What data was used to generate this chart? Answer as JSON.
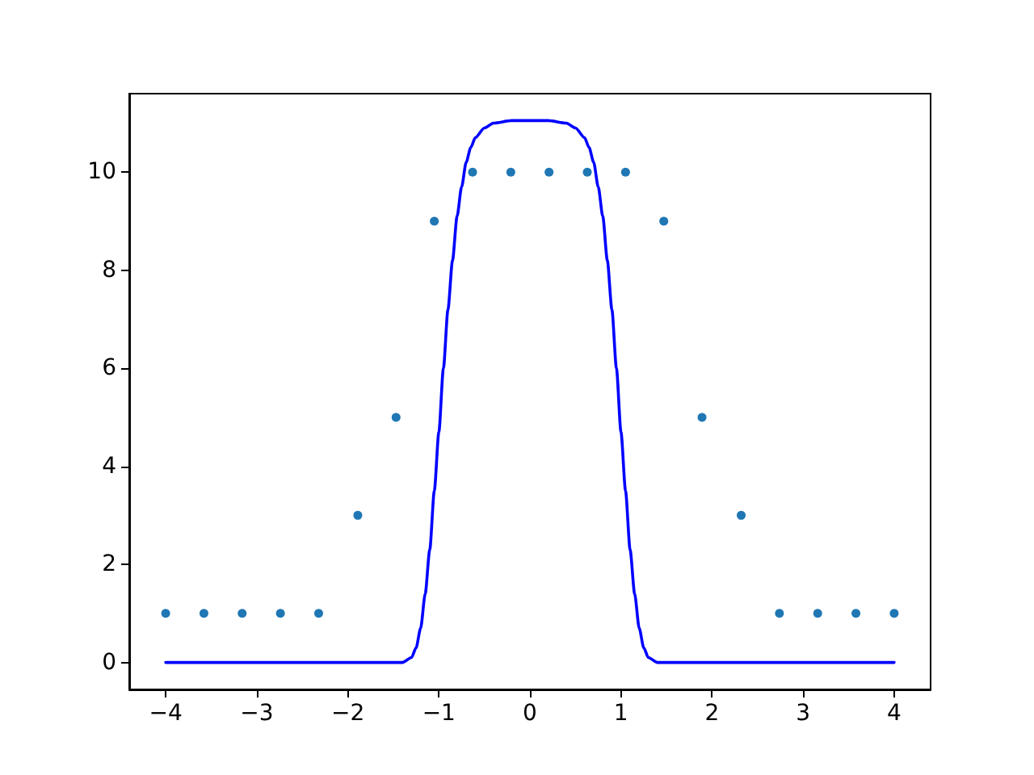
{
  "chart_data": {
    "type": "scatter",
    "xlim": [
      -4.4,
      4.4
    ],
    "ylim": [
      -0.55,
      11.6
    ],
    "xticks": [
      {
        "value": -4,
        "label": "−4"
      },
      {
        "value": -3,
        "label": "−3"
      },
      {
        "value": -2,
        "label": "−2"
      },
      {
        "value": -1,
        "label": "−1"
      },
      0,
      1,
      2,
      3,
      4
    ],
    "yticks": [
      0,
      2,
      4,
      6,
      8,
      10
    ],
    "marker": "circle",
    "series": [
      {
        "color": "#1f77b4",
        "x": [
          -4,
          -3.58,
          -3.16,
          -2.74,
          -2.32,
          -1.89,
          -1.47,
          -1.05,
          -0.63,
          -0.21,
          0.21,
          0.63,
          1.05,
          1.47,
          1.89,
          2.32,
          2.74,
          3.16,
          3.58,
          4
        ],
        "values": [
          1,
          1,
          1,
          1,
          1,
          3,
          5,
          9,
          10,
          10,
          10,
          10,
          10,
          9,
          5,
          3,
          1,
          1,
          1,
          1
        ]
      },
      {
        "type": "line",
        "color": "#0000ff",
        "marker": "none",
        "x": [
          -4,
          -2,
          -1.5,
          -1.4,
          -1.3,
          -1.25,
          -1.2,
          -1.15,
          -1.1,
          -1.05,
          -1,
          -0.95,
          -0.9,
          -0.85,
          -0.8,
          -0.75,
          -0.7,
          -0.65,
          -0.6,
          -0.5,
          -0.4,
          -0.2,
          0,
          0.2,
          0.4,
          0.5,
          0.6,
          0.65,
          0.7,
          0.75,
          0.8,
          0.85,
          0.9,
          0.95,
          1,
          1.05,
          1.1,
          1.15,
          1.2,
          1.25,
          1.3,
          1.4,
          1.5,
          2,
          4
        ],
        "values": [
          0,
          0,
          0,
          0,
          0.1,
          0.3,
          0.7,
          1.4,
          2.3,
          3.5,
          4.7,
          6.0,
          7.2,
          8.2,
          9.1,
          9.7,
          10.2,
          10.5,
          10.7,
          10.9,
          11.0,
          11.05,
          11.05,
          11.05,
          11.0,
          10.9,
          10.7,
          10.5,
          10.2,
          9.7,
          9.1,
          8.2,
          7.2,
          6.0,
          4.7,
          3.5,
          2.3,
          1.4,
          0.7,
          0.3,
          0.1,
          0,
          0,
          0,
          0
        ]
      }
    ]
  }
}
